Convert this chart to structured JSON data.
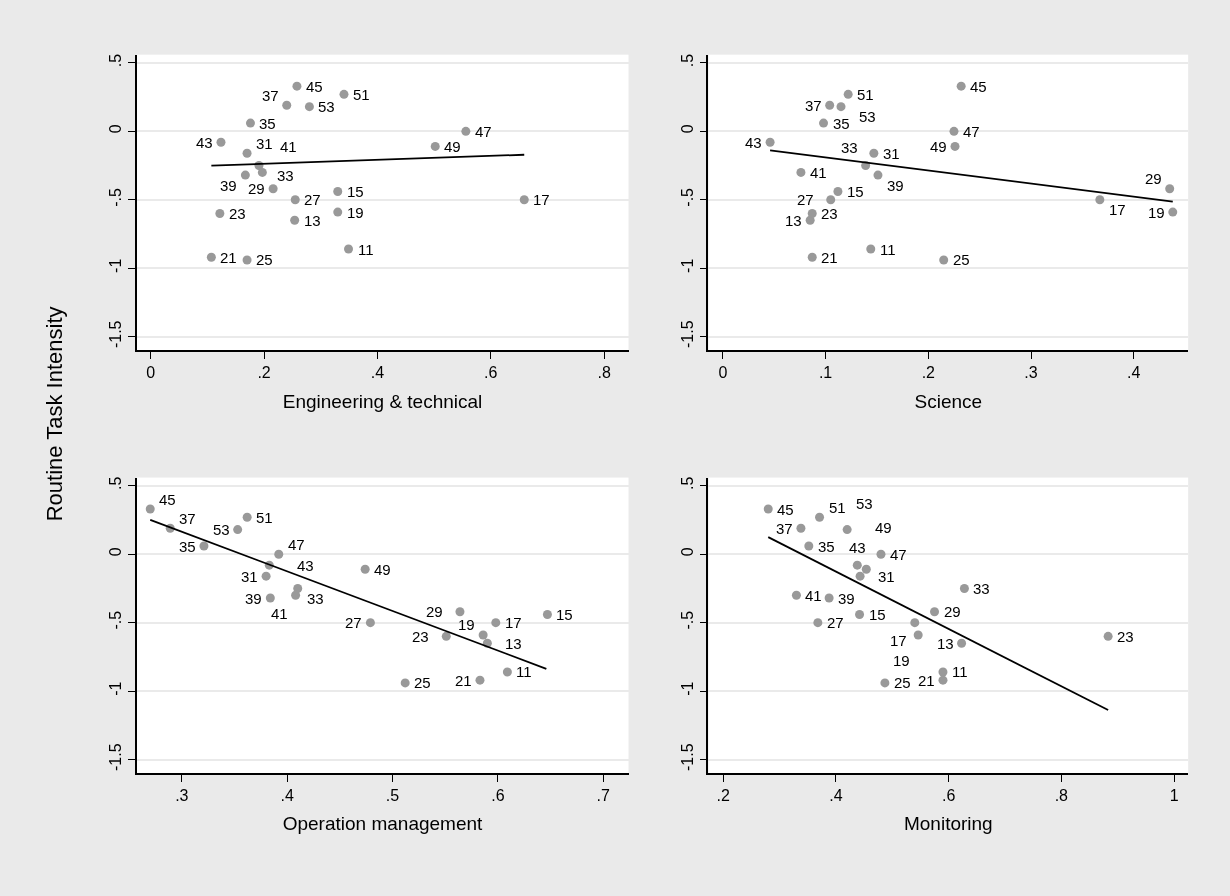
{
  "chart_data": [
    {
      "type": "scatter",
      "xlabel": "Engineering & technical",
      "ylabel": "Routine Task Intensity",
      "grid": "y",
      "xlim": [
        -0.025,
        0.843
      ],
      "ylim": [
        -1.6,
        0.56
      ],
      "xticks": [
        0,
        {
          "value": 0.2,
          "label": ".2"
        },
        {
          "value": 0.4,
          "label": ".4"
        },
        {
          "value": 0.6,
          "label": ".6"
        },
        {
          "value": 0.8,
          "label": ".8"
        }
      ],
      "yticks": [
        {
          "value": -1.5,
          "label": "-1.5"
        },
        -1,
        {
          "value": -0.5,
          "label": "-.5"
        },
        0,
        {
          "value": 0.5,
          "label": ".5"
        }
      ],
      "series": [
        {
          "marker": "circle",
          "color": "#999999",
          "x": [
            0.349,
            0.254,
            0.33,
            0.659,
            0.33,
            0.107,
            0.122,
            0.17,
            0.255,
            0.216,
            0.17,
            0.191,
            0.176,
            0.24,
            0.167,
            0.197,
            0.124,
            0.258,
            0.556,
            0.502,
            0.341,
            0.28
          ],
          "values": [
            -0.86,
            -0.65,
            -0.44,
            -0.5,
            -0.59,
            -0.92,
            -0.6,
            -0.94,
            -0.5,
            -0.42,
            -0.16,
            -0.25,
            0.06,
            0.19,
            -0.32,
            -0.3,
            -0.08,
            0.33,
            0.0,
            -0.11,
            0.27,
            0.18
          ]
        },
        {
          "type": "line",
          "marker": "none",
          "color": "#000000",
          "x": [
            0.107,
            0.659
          ],
          "values": [
            -0.251,
            -0.171
          ]
        }
      ],
      "annotations": [
        {
          "text": "11",
          "x": 0.349,
          "y": -0.86
        },
        {
          "text": "13",
          "x": 0.254,
          "y": -0.65
        },
        {
          "text": "15",
          "x": 0.33,
          "y": -0.44
        },
        {
          "text": "17",
          "x": 0.659,
          "y": -0.5
        },
        {
          "text": "19",
          "x": 0.33,
          "y": -0.59
        },
        {
          "text": "21",
          "x": 0.107,
          "y": -0.92
        },
        {
          "text": "23",
          "x": 0.122,
          "y": -0.6
        },
        {
          "text": "25",
          "x": 0.17,
          "y": -0.94
        },
        {
          "text": "27",
          "x": 0.255,
          "y": -0.5
        },
        {
          "text": "29",
          "x": 0.216,
          "y": -0.42
        },
        {
          "text": "31",
          "x": 0.17,
          "y": -0.16
        },
        {
          "text": "33",
          "x": 0.191,
          "y": -0.25
        },
        {
          "text": "35",
          "x": 0.176,
          "y": 0.06
        },
        {
          "text": "37",
          "x": 0.24,
          "y": 0.19
        },
        {
          "text": "39",
          "x": 0.167,
          "y": -0.32
        },
        {
          "text": "41",
          "x": 0.197,
          "y": -0.3
        },
        {
          "text": "43",
          "x": 0.124,
          "y": -0.08
        },
        {
          "text": "45",
          "x": 0.258,
          "y": 0.33
        },
        {
          "text": "47",
          "x": 0.556,
          "y": 0.0
        },
        {
          "text": "49",
          "x": 0.502,
          "y": -0.11
        },
        {
          "text": "51",
          "x": 0.341,
          "y": 0.27
        },
        {
          "text": "53",
          "x": 0.28,
          "y": 0.18
        }
      ]
    },
    {
      "type": "scatter",
      "xlabel": "Science",
      "grid": "y",
      "xlim": [
        -0.014,
        0.453
      ],
      "ylim": [
        -1.6,
        0.56
      ],
      "xticks": [
        0,
        {
          "value": 0.1,
          "label": ".1"
        },
        {
          "value": 0.2,
          "label": ".2"
        },
        {
          "value": 0.3,
          "label": ".3"
        },
        {
          "value": 0.4,
          "label": ".4"
        }
      ],
      "yticks": [
        {
          "value": -1.5,
          "label": "-1.5"
        },
        -1,
        {
          "value": -0.5,
          "label": "-.5"
        },
        0,
        {
          "value": 0.5,
          "label": ".5"
        }
      ],
      "series": [
        {
          "marker": "circle",
          "color": "#999999",
          "x": [
            0.144,
            0.085,
            0.112,
            0.367,
            0.438,
            0.087,
            0.087,
            0.215,
            0.105,
            0.435,
            0.147,
            0.139,
            0.098,
            0.104,
            0.151,
            0.076,
            0.046,
            0.232,
            0.225,
            0.226,
            0.122,
            0.115
          ],
          "values": [
            -0.86,
            -0.65,
            -0.44,
            -0.5,
            -0.59,
            -0.92,
            -0.6,
            -0.94,
            -0.5,
            -0.42,
            -0.16,
            -0.25,
            0.06,
            0.19,
            -0.32,
            -0.3,
            -0.08,
            0.33,
            0.0,
            -0.11,
            0.27,
            0.18
          ]
        },
        {
          "type": "line",
          "marker": "none",
          "color": "#000000",
          "x": [
            0.046,
            0.438
          ],
          "values": [
            -0.139,
            -0.513
          ]
        }
      ],
      "annotations": [
        {
          "text": "11",
          "x": 0.144,
          "y": -0.86
        },
        {
          "text": "13",
          "x": 0.085,
          "y": -0.65
        },
        {
          "text": "15",
          "x": 0.112,
          "y": -0.44
        },
        {
          "text": "17",
          "x": 0.367,
          "y": -0.5
        },
        {
          "text": "19",
          "x": 0.438,
          "y": -0.59
        },
        {
          "text": "21",
          "x": 0.087,
          "y": -0.92
        },
        {
          "text": "23",
          "x": 0.087,
          "y": -0.6
        },
        {
          "text": "25",
          "x": 0.215,
          "y": -0.94
        },
        {
          "text": "27",
          "x": 0.105,
          "y": -0.5
        },
        {
          "text": "29",
          "x": 0.435,
          "y": -0.42
        },
        {
          "text": "31",
          "x": 0.147,
          "y": -0.16
        },
        {
          "text": "33",
          "x": 0.139,
          "y": -0.25
        },
        {
          "text": "35",
          "x": 0.098,
          "y": 0.06
        },
        {
          "text": "37",
          "x": 0.104,
          "y": 0.19
        },
        {
          "text": "39",
          "x": 0.151,
          "y": -0.32
        },
        {
          "text": "41",
          "x": 0.076,
          "y": -0.3
        },
        {
          "text": "43",
          "x": 0.046,
          "y": -0.08
        },
        {
          "text": "45",
          "x": 0.232,
          "y": 0.33
        },
        {
          "text": "47",
          "x": 0.225,
          "y": 0.0
        },
        {
          "text": "49",
          "x": 0.226,
          "y": -0.11
        },
        {
          "text": "51",
          "x": 0.122,
          "y": 0.27
        },
        {
          "text": "53",
          "x": 0.115,
          "y": 0.18
        }
      ]
    },
    {
      "type": "scatter",
      "xlabel": "Operation management",
      "grid": "y",
      "xlim": [
        0.257,
        0.724
      ],
      "ylim": [
        -1.6,
        0.56
      ],
      "xticks": [
        {
          "value": 0.3,
          "label": ".3"
        },
        {
          "value": 0.4,
          "label": ".4"
        },
        {
          "value": 0.5,
          "label": ".5"
        },
        {
          "value": 0.6,
          "label": ".6"
        },
        {
          "value": 0.7,
          "label": ".7"
        }
      ],
      "yticks": [
        {
          "value": -1.5,
          "label": "-1.5"
        },
        -1,
        {
          "value": -0.5,
          "label": "-.5"
        },
        0,
        {
          "value": 0.5,
          "label": ".5"
        }
      ],
      "series": [
        {
          "marker": "circle",
          "color": "#999999",
          "x": [
            0.609,
            0.59,
            0.647,
            0.598,
            0.586,
            0.583,
            0.551,
            0.512,
            0.479,
            0.564,
            0.38,
            0.41,
            0.321,
            0.289,
            0.384,
            0.408,
            0.383,
            0.27,
            0.392,
            0.474,
            0.362,
            0.353
          ],
          "values": [
            -0.86,
            -0.65,
            -0.44,
            -0.5,
            -0.59,
            -0.92,
            -0.6,
            -0.94,
            -0.5,
            -0.42,
            -0.16,
            -0.25,
            0.06,
            0.19,
            -0.32,
            -0.3,
            -0.08,
            0.33,
            0.0,
            -0.11,
            0.27,
            0.18
          ]
        },
        {
          "type": "line",
          "marker": "none",
          "color": "#000000",
          "x": [
            0.27,
            0.646
          ],
          "values": [
            0.251,
            -0.837
          ]
        }
      ],
      "annotations": [
        {
          "text": "11",
          "x": 0.609,
          "y": -0.86
        },
        {
          "text": "13",
          "x": 0.59,
          "y": -0.65
        },
        {
          "text": "15",
          "x": 0.647,
          "y": -0.44
        },
        {
          "text": "17",
          "x": 0.598,
          "y": -0.5
        },
        {
          "text": "19",
          "x": 0.586,
          "y": -0.59
        },
        {
          "text": "21",
          "x": 0.583,
          "y": -0.92
        },
        {
          "text": "23",
          "x": 0.551,
          "y": -0.6
        },
        {
          "text": "25",
          "x": 0.512,
          "y": -0.94
        },
        {
          "text": "27",
          "x": 0.479,
          "y": -0.5
        },
        {
          "text": "29",
          "x": 0.564,
          "y": -0.42
        },
        {
          "text": "31",
          "x": 0.38,
          "y": -0.16
        },
        {
          "text": "33",
          "x": 0.41,
          "y": -0.25
        },
        {
          "text": "35",
          "x": 0.321,
          "y": 0.06
        },
        {
          "text": "37",
          "x": 0.289,
          "y": 0.19
        },
        {
          "text": "39",
          "x": 0.384,
          "y": -0.32
        },
        {
          "text": "41",
          "x": 0.408,
          "y": -0.3
        },
        {
          "text": "43",
          "x": 0.383,
          "y": -0.08
        },
        {
          "text": "45",
          "x": 0.27,
          "y": 0.33
        },
        {
          "text": "47",
          "x": 0.392,
          "y": 0.0
        },
        {
          "text": "49",
          "x": 0.474,
          "y": -0.11
        },
        {
          "text": "51",
          "x": 0.362,
          "y": 0.27
        },
        {
          "text": "53",
          "x": 0.353,
          "y": 0.18
        }
      ]
    },
    {
      "type": "scatter",
      "xlabel": "Monitoring",
      "grid": "y",
      "xlim": [
        0.174,
        1.025
      ],
      "ylim": [
        -1.6,
        0.56
      ],
      "xticks": [
        {
          "value": 0.2,
          "label": ".2"
        },
        {
          "value": 0.4,
          "label": ".4"
        },
        {
          "value": 0.6,
          "label": ".6"
        },
        {
          "value": 0.8,
          "label": ".8"
        },
        1
      ],
      "yticks": [
        {
          "value": -1.5,
          "label": "-1.5"
        },
        -1,
        {
          "value": -0.5,
          "label": "-.5"
        },
        0,
        {
          "value": 0.5,
          "label": ".5"
        }
      ],
      "series": [
        {
          "marker": "circle",
          "color": "#999999",
          "x": [
            0.59,
            0.623,
            0.442,
            0.54,
            0.546,
            0.59,
            0.883,
            0.487,
            0.368,
            0.575,
            0.443,
            0.628,
            0.352,
            0.338,
            0.388,
            0.33,
            0.438,
            0.28,
            0.48,
            0.454,
            0.371,
            0.42
          ],
          "values": [
            -0.86,
            -0.65,
            -0.44,
            -0.5,
            -0.59,
            -0.92,
            -0.6,
            -0.94,
            -0.5,
            -0.42,
            -0.16,
            -0.25,
            0.06,
            0.19,
            -0.32,
            -0.3,
            -0.08,
            0.33,
            0.0,
            -0.11,
            0.27,
            0.18
          ]
        },
        {
          "type": "line",
          "marker": "none",
          "color": "#000000",
          "x": [
            0.28,
            0.883
          ],
          "values": [
            0.125,
            -1.138
          ]
        }
      ],
      "annotations": [
        {
          "text": "11",
          "x": 0.59,
          "y": -0.86
        },
        {
          "text": "13",
          "x": 0.623,
          "y": -0.65
        },
        {
          "text": "15",
          "x": 0.442,
          "y": -0.44
        },
        {
          "text": "17",
          "x": 0.54,
          "y": -0.5
        },
        {
          "text": "19",
          "x": 0.546,
          "y": -0.59
        },
        {
          "text": "21",
          "x": 0.59,
          "y": -0.92
        },
        {
          "text": "23",
          "x": 0.883,
          "y": -0.6
        },
        {
          "text": "25",
          "x": 0.487,
          "y": -0.94
        },
        {
          "text": "27",
          "x": 0.368,
          "y": -0.5
        },
        {
          "text": "29",
          "x": 0.575,
          "y": -0.42
        },
        {
          "text": "31",
          "x": 0.443,
          "y": -0.16
        },
        {
          "text": "33",
          "x": 0.628,
          "y": -0.25
        },
        {
          "text": "35",
          "x": 0.352,
          "y": 0.06
        },
        {
          "text": "37",
          "x": 0.338,
          "y": 0.19
        },
        {
          "text": "39",
          "x": 0.388,
          "y": -0.32
        },
        {
          "text": "41",
          "x": 0.33,
          "y": -0.3
        },
        {
          "text": "43",
          "x": 0.438,
          "y": -0.08
        },
        {
          "text": "45",
          "x": 0.28,
          "y": 0.33
        },
        {
          "text": "47",
          "x": 0.48,
          "y": 0.0
        },
        {
          "text": "49",
          "x": 0.454,
          "y": -0.11
        },
        {
          "text": "51",
          "x": 0.371,
          "y": 0.27
        },
        {
          "text": "53",
          "x": 0.42,
          "y": 0.18
        }
      ]
    }
  ]
}
